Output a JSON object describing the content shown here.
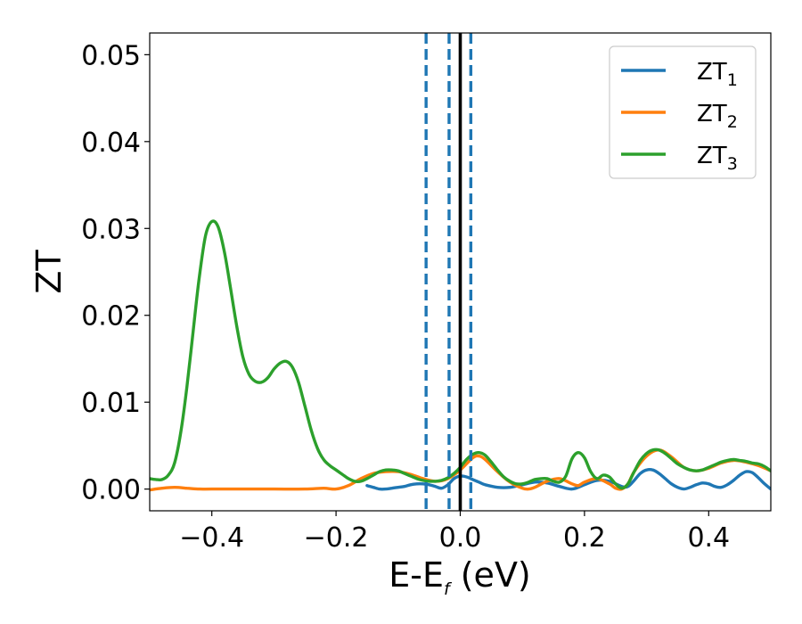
{
  "chart_data": {
    "type": "line",
    "xlabel": {
      "main": "E-E",
      "sub": "f",
      "unit": " (eV)"
    },
    "ylabel": "ZT",
    "xlim": [
      -0.5,
      0.5
    ],
    "ylim": [
      -0.0025,
      0.0525
    ],
    "xticks": [
      {
        "v": -0.4,
        "label": "−0.4"
      },
      {
        "v": -0.2,
        "label": "−0.2"
      },
      {
        "v": 0.0,
        "label": "0.0"
      },
      {
        "v": 0.2,
        "label": "0.2"
      },
      {
        "v": 0.4,
        "label": "0.4"
      }
    ],
    "yticks": [
      {
        "v": 0.0,
        "label": "0.00"
      },
      {
        "v": 0.01,
        "label": "0.01"
      },
      {
        "v": 0.02,
        "label": "0.02"
      },
      {
        "v": 0.03,
        "label": "0.03"
      },
      {
        "v": 0.04,
        "label": "0.04"
      },
      {
        "v": 0.05,
        "label": "0.05"
      }
    ],
    "grid": false,
    "legend_position": "top-right",
    "vlines": [
      {
        "x": -0.055,
        "style": "dashed",
        "color": "#1f77b4"
      },
      {
        "x": -0.018,
        "style": "dashed",
        "color": "#1f77b4"
      },
      {
        "x": 0.0,
        "style": "solid",
        "color": "#000000"
      },
      {
        "x": 0.017,
        "style": "dashed",
        "color": "#1f77b4"
      }
    ],
    "series": [
      {
        "name": "ZT",
        "sub": "1",
        "color": "#1f77b4",
        "points": [
          [
            -0.15,
            0.0004
          ],
          [
            -0.14,
            0.0002
          ],
          [
            -0.13,
            0.0
          ],
          [
            -0.12,
            0.0
          ],
          [
            -0.11,
            0.0001
          ],
          [
            -0.1,
            0.0002
          ],
          [
            -0.09,
            0.0003
          ],
          [
            -0.08,
            0.0005
          ],
          [
            -0.07,
            0.0006
          ],
          [
            -0.06,
            0.0006
          ],
          [
            -0.05,
            0.0005
          ],
          [
            -0.04,
            0.0003
          ],
          [
            -0.03,
            0.0001
          ],
          [
            -0.02,
            0.0005
          ],
          [
            -0.01,
            0.0012
          ],
          [
            0.0,
            0.0015
          ],
          [
            0.01,
            0.0014
          ],
          [
            0.02,
            0.0011
          ],
          [
            0.03,
            0.0008
          ],
          [
            0.04,
            0.0005
          ],
          [
            0.06,
            0.0002
          ],
          [
            0.08,
            0.0002
          ],
          [
            0.1,
            0.0005
          ],
          [
            0.12,
            0.0008
          ],
          [
            0.14,
            0.0007
          ],
          [
            0.16,
            0.0003
          ],
          [
            0.18,
            0.0
          ],
          [
            0.2,
            0.0005
          ],
          [
            0.22,
            0.001
          ],
          [
            0.24,
            0.0009
          ],
          [
            0.26,
            0.0003
          ],
          [
            0.27,
            0.0003
          ],
          [
            0.28,
            0.001
          ],
          [
            0.29,
            0.0018
          ],
          [
            0.3,
            0.0022
          ],
          [
            0.31,
            0.0022
          ],
          [
            0.32,
            0.0018
          ],
          [
            0.33,
            0.0012
          ],
          [
            0.34,
            0.0006
          ],
          [
            0.35,
            0.0002
          ],
          [
            0.36,
            0.0
          ],
          [
            0.37,
            0.0002
          ],
          [
            0.38,
            0.0005
          ],
          [
            0.39,
            0.0007
          ],
          [
            0.4,
            0.0006
          ],
          [
            0.41,
            0.0003
          ],
          [
            0.42,
            0.0002
          ],
          [
            0.43,
            0.0005
          ],
          [
            0.44,
            0.001
          ],
          [
            0.45,
            0.0016
          ],
          [
            0.46,
            0.002
          ],
          [
            0.47,
            0.0019
          ],
          [
            0.48,
            0.0013
          ],
          [
            0.49,
            0.0006
          ],
          [
            0.5,
            0.0
          ]
        ]
      },
      {
        "name": "ZT",
        "sub": "2",
        "color": "#ff7f0e",
        "points": [
          [
            -0.5,
            -0.0001
          ],
          [
            -0.48,
            0.0001
          ],
          [
            -0.46,
            0.0002
          ],
          [
            -0.44,
            0.0001
          ],
          [
            -0.42,
            0.0
          ],
          [
            -0.4,
            0.0
          ],
          [
            -0.35,
            0.0
          ],
          [
            -0.3,
            0.0
          ],
          [
            -0.25,
            0.0
          ],
          [
            -0.22,
            0.0001
          ],
          [
            -0.2,
            0.0
          ],
          [
            -0.18,
            0.0004
          ],
          [
            -0.16,
            0.0012
          ],
          [
            -0.14,
            0.0018
          ],
          [
            -0.12,
            0.002
          ],
          [
            -0.1,
            0.002
          ],
          [
            -0.08,
            0.0017
          ],
          [
            -0.06,
            0.0012
          ],
          [
            -0.04,
            0.0009
          ],
          [
            -0.02,
            0.0012
          ],
          [
            0.0,
            0.0022
          ],
          [
            0.02,
            0.0036
          ],
          [
            0.03,
            0.0038
          ],
          [
            0.04,
            0.0034
          ],
          [
            0.06,
            0.002
          ],
          [
            0.08,
            0.0008
          ],
          [
            0.1,
            0.0001
          ],
          [
            0.11,
            0.0
          ],
          [
            0.12,
            0.0002
          ],
          [
            0.14,
            0.0009
          ],
          [
            0.16,
            0.0012
          ],
          [
            0.18,
            0.0006
          ],
          [
            0.19,
            0.0004
          ],
          [
            0.2,
            0.0008
          ],
          [
            0.22,
            0.0012
          ],
          [
            0.24,
            0.0006
          ],
          [
            0.25,
            0.0001
          ],
          [
            0.26,
            0.0
          ],
          [
            0.27,
            0.0006
          ],
          [
            0.28,
            0.002
          ],
          [
            0.3,
            0.0038
          ],
          [
            0.32,
            0.0045
          ],
          [
            0.34,
            0.0037
          ],
          [
            0.36,
            0.0025
          ],
          [
            0.38,
            0.0021
          ],
          [
            0.4,
            0.0024
          ],
          [
            0.42,
            0.003
          ],
          [
            0.44,
            0.0033
          ],
          [
            0.46,
            0.0031
          ],
          [
            0.48,
            0.0027
          ],
          [
            0.5,
            0.0021
          ]
        ]
      },
      {
        "name": "ZT",
        "sub": "3",
        "color": "#2ca02c",
        "points": [
          [
            -0.5,
            0.0012
          ],
          [
            -0.49,
            0.0011
          ],
          [
            -0.48,
            0.0011
          ],
          [
            -0.47,
            0.0016
          ],
          [
            -0.46,
            0.003
          ],
          [
            -0.45,
            0.0065
          ],
          [
            -0.44,
            0.0118
          ],
          [
            -0.43,
            0.0182
          ],
          [
            -0.42,
            0.0245
          ],
          [
            -0.41,
            0.0292
          ],
          [
            -0.4,
            0.0308
          ],
          [
            -0.39,
            0.0302
          ],
          [
            -0.38,
            0.0274
          ],
          [
            -0.37,
            0.0232
          ],
          [
            -0.36,
            0.0188
          ],
          [
            -0.35,
            0.0152
          ],
          [
            -0.34,
            0.0132
          ],
          [
            -0.33,
            0.0124
          ],
          [
            -0.32,
            0.0123
          ],
          [
            -0.31,
            0.0128
          ],
          [
            -0.3,
            0.0138
          ],
          [
            -0.29,
            0.0145
          ],
          [
            -0.28,
            0.0147
          ],
          [
            -0.27,
            0.014
          ],
          [
            -0.26,
            0.0122
          ],
          [
            -0.25,
            0.0095
          ],
          [
            -0.24,
            0.0068
          ],
          [
            -0.23,
            0.0047
          ],
          [
            -0.22,
            0.0034
          ],
          [
            -0.21,
            0.0027
          ],
          [
            -0.2,
            0.0022
          ],
          [
            -0.19,
            0.0017
          ],
          [
            -0.18,
            0.0012
          ],
          [
            -0.17,
            0.0009
          ],
          [
            -0.16,
            0.0009
          ],
          [
            -0.15,
            0.0012
          ],
          [
            -0.14,
            0.0016
          ],
          [
            -0.13,
            0.002
          ],
          [
            -0.12,
            0.0022
          ],
          [
            -0.11,
            0.0022
          ],
          [
            -0.1,
            0.0021
          ],
          [
            -0.09,
            0.0018
          ],
          [
            -0.08,
            0.0015
          ],
          [
            -0.07,
            0.0012
          ],
          [
            -0.06,
            0.001
          ],
          [
            -0.05,
            0.0009
          ],
          [
            -0.04,
            0.0009
          ],
          [
            -0.03,
            0.001
          ],
          [
            -0.02,
            0.0013
          ],
          [
            -0.01,
            0.0018
          ],
          [
            0.0,
            0.0025
          ],
          [
            0.01,
            0.0034
          ],
          [
            0.02,
            0.004
          ],
          [
            0.03,
            0.0042
          ],
          [
            0.04,
            0.0039
          ],
          [
            0.05,
            0.0031
          ],
          [
            0.06,
            0.0022
          ],
          [
            0.07,
            0.0014
          ],
          [
            0.08,
            0.0009
          ],
          [
            0.09,
            0.0006
          ],
          [
            0.1,
            0.0006
          ],
          [
            0.11,
            0.0008
          ],
          [
            0.12,
            0.0011
          ],
          [
            0.13,
            0.0012
          ],
          [
            0.14,
            0.0012
          ],
          [
            0.15,
            0.0009
          ],
          [
            0.16,
            0.0008
          ],
          [
            0.17,
            0.0015
          ],
          [
            0.18,
            0.0035
          ],
          [
            0.19,
            0.0042
          ],
          [
            0.2,
            0.0036
          ],
          [
            0.21,
            0.002
          ],
          [
            0.22,
            0.0012
          ],
          [
            0.23,
            0.0016
          ],
          [
            0.24,
            0.0014
          ],
          [
            0.25,
            0.0006
          ],
          [
            0.26,
            0.0001
          ],
          [
            0.27,
            0.0006
          ],
          [
            0.28,
            0.002
          ],
          [
            0.29,
            0.0033
          ],
          [
            0.3,
            0.0041
          ],
          [
            0.31,
            0.0045
          ],
          [
            0.32,
            0.0045
          ],
          [
            0.33,
            0.0041
          ],
          [
            0.34,
            0.0035
          ],
          [
            0.35,
            0.0029
          ],
          [
            0.36,
            0.0025
          ],
          [
            0.37,
            0.0022
          ],
          [
            0.38,
            0.0021
          ],
          [
            0.39,
            0.0022
          ],
          [
            0.4,
            0.0025
          ],
          [
            0.41,
            0.0028
          ],
          [
            0.42,
            0.0031
          ],
          [
            0.43,
            0.0033
          ],
          [
            0.44,
            0.0034
          ],
          [
            0.45,
            0.0033
          ],
          [
            0.46,
            0.0032
          ],
          [
            0.47,
            0.003
          ],
          [
            0.48,
            0.0029
          ],
          [
            0.49,
            0.0026
          ],
          [
            0.5,
            0.0021
          ]
        ]
      }
    ]
  }
}
